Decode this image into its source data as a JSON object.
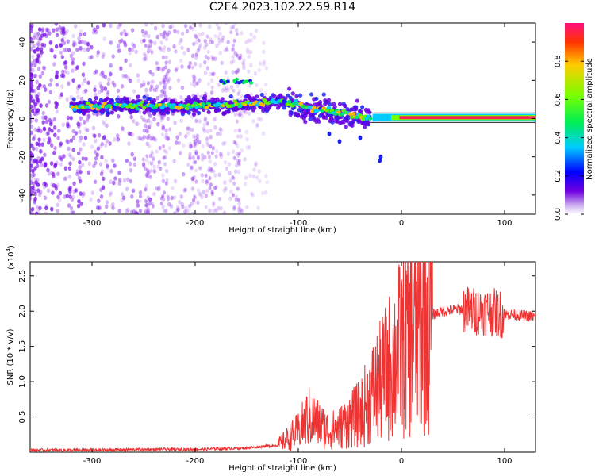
{
  "title": "C2E4.2023.102.22.59.R14",
  "chart_data": [
    {
      "type": "heatmap",
      "xlabel": "Height of straight line (km)",
      "ylabel": "Frequency (Hz)",
      "xlim": [
        -360,
        130
      ],
      "ylim": [
        -50,
        50
      ],
      "xticks": [
        -300,
        -200,
        -100,
        0,
        100
      ],
      "yticks": [
        -40,
        -20,
        0,
        20,
        40
      ],
      "ridge": {
        "x": [
          -310,
          -280,
          -250,
          -220,
          -190,
          -160,
          -140,
          -120,
          -100,
          -85,
          -70,
          -60,
          -50,
          -42,
          -35,
          -25,
          -15,
          -5,
          0,
          130
        ],
        "y": [
          6,
          7,
          7,
          6,
          7,
          7,
          8,
          9,
          7,
          5,
          4,
          3,
          2,
          1,
          0,
          1,
          0.5,
          1,
          0.5,
          0.5
        ]
      },
      "colorbar": {
        "label": "Normalized spectral amplitude",
        "ticks": [
          0.0,
          0.2,
          0.4,
          0.6,
          0.8
        ],
        "range": [
          0,
          1
        ]
      }
    },
    {
      "type": "line",
      "xlabel": "Height of straight line (km)",
      "ylabel": "SNR (10 * v/v)",
      "multiplier_label": "(x10",
      "multiplier_exp": "4",
      "multiplier_close": ")",
      "xlim": [
        -360,
        130
      ],
      "ylim": [
        0,
        2.7
      ],
      "xticks": [
        -300,
        -200,
        -100,
        0,
        100
      ],
      "yticks": [
        0.5,
        1.0,
        1.5,
        2.0,
        2.5
      ],
      "color": "#ee3333",
      "series": [
        {
          "x": [
            -360,
            -300,
            -250,
            -200,
            -150,
            -120,
            -100,
            -90,
            -80,
            -70,
            -60,
            -50,
            -40,
            -30,
            -20,
            -10,
            0,
            10,
            20,
            30,
            40,
            50,
            60,
            70,
            80,
            90,
            100,
            110,
            130
          ],
          "y": [
            0.03,
            0.03,
            0.04,
            0.04,
            0.06,
            0.1,
            0.3,
            0.5,
            0.4,
            0.3,
            0.35,
            0.45,
            0.55,
            0.8,
            1.0,
            1.25,
            1.5,
            1.7,
            1.85,
            1.95,
            2.0,
            2.02,
            2.03,
            2.0,
            2.0,
            1.98,
            1.95,
            1.95,
            1.92
          ]
        }
      ]
    }
  ]
}
